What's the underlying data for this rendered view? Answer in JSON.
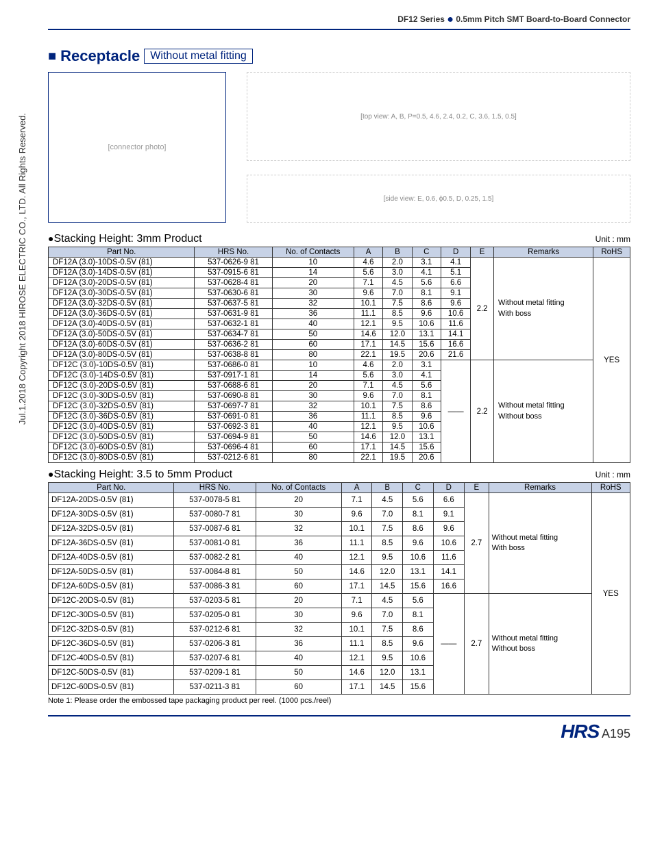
{
  "header": {
    "series": "DF12 Series",
    "subtitle": "0.5mm Pitch SMT Board-to-Board Connector"
  },
  "section": {
    "title": "Receptacle",
    "subtype": "Without metal fitting"
  },
  "diagram_labels": [
    "A",
    "B",
    "C",
    "D",
    "P=0.5",
    "4.6",
    "2.4",
    "0.2",
    "3.6",
    "1.5",
    "0.5",
    "E",
    "0.6",
    "ϕ0.5",
    "0.25",
    "1.5"
  ],
  "table1": {
    "heading": "Stacking Height: 3mm Product",
    "unit": "Unit : mm",
    "columns": [
      "Part No.",
      "HRS No.",
      "No. of Contacts",
      "A",
      "B",
      "C",
      "D",
      "E",
      "Remarks",
      "RoHS"
    ],
    "group1": {
      "E": "2.2",
      "remarks": "Without metal fitting\nWith boss",
      "rows": [
        [
          "DF12A (3.0)-10DS-0.5V (81)",
          "537-0626-9 81",
          "10",
          "4.6",
          "2.0",
          "3.1",
          "4.1"
        ],
        [
          "DF12A (3.0)-14DS-0.5V (81)",
          "537-0915-6 81",
          "14",
          "5.6",
          "3.0",
          "4.1",
          "5.1"
        ],
        [
          "DF12A (3.0)-20DS-0.5V (81)",
          "537-0628-4 81",
          "20",
          "7.1",
          "4.5",
          "5.6",
          "6.6"
        ],
        [
          "DF12A (3.0)-30DS-0.5V (81)",
          "537-0630-6 81",
          "30",
          "9.6",
          "7.0",
          "8.1",
          "9.1"
        ],
        [
          "DF12A (3.0)-32DS-0.5V (81)",
          "537-0637-5 81",
          "32",
          "10.1",
          "7.5",
          "8.6",
          "9.6"
        ],
        [
          "DF12A (3.0)-36DS-0.5V (81)",
          "537-0631-9 81",
          "36",
          "11.1",
          "8.5",
          "9.6",
          "10.6"
        ],
        [
          "DF12A (3.0)-40DS-0.5V (81)",
          "537-0632-1 81",
          "40",
          "12.1",
          "9.5",
          "10.6",
          "11.6"
        ],
        [
          "DF12A (3.0)-50DS-0.5V (81)",
          "537-0634-7 81",
          "50",
          "14.6",
          "12.0",
          "13.1",
          "14.1"
        ],
        [
          "DF12A (3.0)-60DS-0.5V (81)",
          "537-0636-2 81",
          "60",
          "17.1",
          "14.5",
          "15.6",
          "16.6"
        ],
        [
          "DF12A (3.0)-80DS-0.5V (81)",
          "537-0638-8 81",
          "80",
          "22.1",
          "19.5",
          "20.6",
          "21.6"
        ]
      ]
    },
    "group2": {
      "D": "——",
      "E": "2.2",
      "remarks": "Without metal fitting\nWithout boss",
      "rows": [
        [
          "DF12C (3.0)-10DS-0.5V (81)",
          "537-0686-0 81",
          "10",
          "4.6",
          "2.0",
          "3.1"
        ],
        [
          "DF12C (3.0)-14DS-0.5V (81)",
          "537-0917-1 81",
          "14",
          "5.6",
          "3.0",
          "4.1"
        ],
        [
          "DF12C (3.0)-20DS-0.5V (81)",
          "537-0688-6 81",
          "20",
          "7.1",
          "4.5",
          "5.6"
        ],
        [
          "DF12C (3.0)-30DS-0.5V (81)",
          "537-0690-8 81",
          "30",
          "9.6",
          "7.0",
          "8.1"
        ],
        [
          "DF12C (3.0)-32DS-0.5V (81)",
          "537-0697-7 81",
          "32",
          "10.1",
          "7.5",
          "8.6"
        ],
        [
          "DF12C (3.0)-36DS-0.5V (81)",
          "537-0691-0 81",
          "36",
          "11.1",
          "8.5",
          "9.6"
        ],
        [
          "DF12C (3.0)-40DS-0.5V (81)",
          "537-0692-3 81",
          "40",
          "12.1",
          "9.5",
          "10.6"
        ],
        [
          "DF12C (3.0)-50DS-0.5V (81)",
          "537-0694-9 81",
          "50",
          "14.6",
          "12.0",
          "13.1"
        ],
        [
          "DF12C (3.0)-60DS-0.5V (81)",
          "537-0696-4 81",
          "60",
          "17.1",
          "14.5",
          "15.6"
        ],
        [
          "DF12C (3.0)-80DS-0.5V (81)",
          "537-0212-6 81",
          "80",
          "22.1",
          "19.5",
          "20.6"
        ]
      ]
    },
    "rohs": "YES"
  },
  "table2": {
    "heading": "Stacking Height: 3.5 to 5mm Product",
    "unit": "Unit : mm",
    "columns": [
      "Part No.",
      "HRS No.",
      "No. of Contacts",
      "A",
      "B",
      "C",
      "D",
      "E",
      "Remarks",
      "RoHS"
    ],
    "group1": {
      "E": "2.7",
      "remarks": "Without metal fitting\nWith boss",
      "rows": [
        [
          "DF12A-20DS-0.5V (81)",
          "537-0078-5 81",
          "20",
          "7.1",
          "4.5",
          "5.6",
          "6.6"
        ],
        [
          "DF12A-30DS-0.5V (81)",
          "537-0080-7 81",
          "30",
          "9.6",
          "7.0",
          "8.1",
          "9.1"
        ],
        [
          "DF12A-32DS-0.5V (81)",
          "537-0087-6 81",
          "32",
          "10.1",
          "7.5",
          "8.6",
          "9.6"
        ],
        [
          "DF12A-36DS-0.5V (81)",
          "537-0081-0 81",
          "36",
          "11.1",
          "8.5",
          "9.6",
          "10.6"
        ],
        [
          "DF12A-40DS-0.5V (81)",
          "537-0082-2 81",
          "40",
          "12.1",
          "9.5",
          "10.6",
          "11.6"
        ],
        [
          "DF12A-50DS-0.5V (81)",
          "537-0084-8 81",
          "50",
          "14.6",
          "12.0",
          "13.1",
          "14.1"
        ],
        [
          "DF12A-60DS-0.5V (81)",
          "537-0086-3 81",
          "60",
          "17.1",
          "14.5",
          "15.6",
          "16.6"
        ]
      ]
    },
    "group2": {
      "D": "——",
      "E": "2.7",
      "remarks": "Without metal fitting\nWithout boss",
      "rows": [
        [
          "DF12C-20DS-0.5V (81)",
          "537-0203-5 81",
          "20",
          "7.1",
          "4.5",
          "5.6"
        ],
        [
          "DF12C-30DS-0.5V (81)",
          "537-0205-0 81",
          "30",
          "9.6",
          "7.0",
          "8.1"
        ],
        [
          "DF12C-32DS-0.5V (81)",
          "537-0212-6 81",
          "32",
          "10.1",
          "7.5",
          "8.6"
        ],
        [
          "DF12C-36DS-0.5V (81)",
          "537-0206-3 81",
          "36",
          "11.1",
          "8.5",
          "9.6"
        ],
        [
          "DF12C-40DS-0.5V (81)",
          "537-0207-6 81",
          "40",
          "12.1",
          "9.5",
          "10.6"
        ],
        [
          "DF12C-50DS-0.5V (81)",
          "537-0209-1 81",
          "50",
          "14.6",
          "12.0",
          "13.1"
        ],
        [
          "DF12C-60DS-0.5V (81)",
          "537-0211-3 81",
          "60",
          "17.1",
          "14.5",
          "15.6"
        ]
      ]
    },
    "rohs": "YES"
  },
  "note": "Note 1: Please order the embossed tape packaging product per reel. (1000 pcs./reel)",
  "footer": {
    "logo": "HRS",
    "page": "A195"
  },
  "copyright": "Jul.1.2018   Copyright 2018 HIROSE ELECTRIC CO., LTD. All Rights Reserved."
}
